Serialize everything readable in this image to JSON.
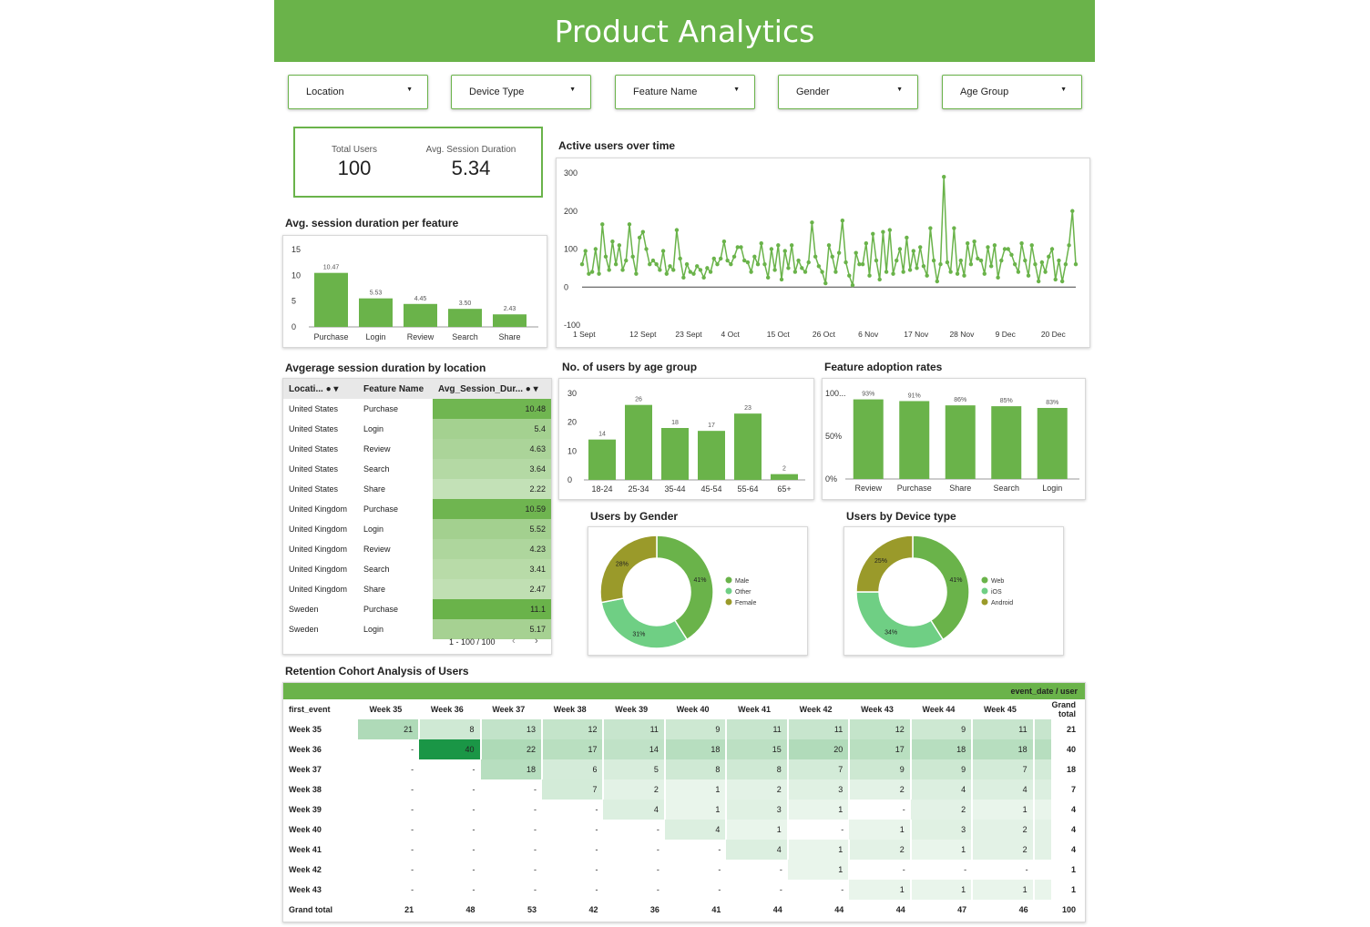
{
  "header": {
    "title": "Product Analytics"
  },
  "filters": [
    "Location",
    "Device Type",
    "Feature Name",
    "Gender",
    "Age Group"
  ],
  "kpis": {
    "total_users_label": "Total Users",
    "total_users": "100",
    "avg_session_label": "Avg. Session Duration",
    "avg_session": "5.34"
  },
  "colors": {
    "accent": "#6ab34a",
    "olive": "#9a9a2a",
    "light_green": "#6fcf84"
  },
  "titles": {
    "session_per_feature": "Avg. session duration per feature",
    "active_users": "Active users over time",
    "session_by_location": "Avgerage session duration by location",
    "users_by_age": "No. of users by age group",
    "feature_adoption": "Feature adoption rates",
    "users_by_gender": "Users by Gender",
    "users_by_device": "Users by Device type",
    "retention": "Retention Cohort Analysis of Users"
  },
  "chart_data": [
    {
      "id": "session_per_feature",
      "type": "bar",
      "categories": [
        "Purchase",
        "Login",
        "Review",
        "Search",
        "Share"
      ],
      "values": [
        10.47,
        5.53,
        4.45,
        3.5,
        2.43
      ],
      "value_labels": [
        "10.47",
        "5.53",
        "4.45",
        "3.50",
        "2.43"
      ],
      "yticks": [
        "15",
        "10",
        "5",
        "0"
      ],
      "ylim": [
        0,
        15
      ]
    },
    {
      "id": "active_users",
      "type": "line",
      "xticks": [
        "1 Sept",
        "12 Sept",
        "23 Sept",
        "4 Oct",
        "15 Oct",
        "26 Oct",
        "6 Nov",
        "17 Nov",
        "28 Nov",
        "9 Dec",
        "20 Dec"
      ],
      "yticks": [
        "300",
        "200",
        "100",
        "0",
        "-100"
      ],
      "ylim": [
        -100,
        300
      ],
      "values": [
        60,
        95,
        35,
        40,
        100,
        35,
        165,
        80,
        45,
        120,
        60,
        110,
        45,
        70,
        165,
        80,
        35,
        130,
        145,
        100,
        60,
        70,
        60,
        45,
        95,
        35,
        55,
        45,
        150,
        75,
        25,
        60,
        40,
        35,
        55,
        45,
        25,
        50,
        40,
        75,
        60,
        75,
        120,
        70,
        60,
        80,
        105,
        105,
        70,
        65,
        40,
        80,
        60,
        115,
        60,
        25,
        100,
        45,
        110,
        20,
        95,
        50,
        110,
        40,
        70,
        50,
        40,
        65,
        170,
        80,
        55,
        40,
        10,
        110,
        80,
        40,
        90,
        175,
        65,
        30,
        5,
        90,
        60,
        60,
        115,
        30,
        140,
        70,
        20,
        145,
        40,
        150,
        35,
        70,
        100,
        40,
        130,
        45,
        95,
        50,
        105,
        55,
        30,
        155,
        70,
        15,
        60,
        290,
        65,
        40,
        155,
        35,
        70,
        30,
        115,
        60,
        120,
        75,
        70,
        35,
        105,
        55,
        110,
        25,
        70,
        100,
        100,
        85,
        60,
        40,
        115,
        70,
        30,
        110,
        60,
        15,
        65,
        40,
        80,
        100,
        20,
        70,
        15,
        60,
        110,
        200,
        60
      ]
    },
    {
      "id": "users_by_age",
      "type": "bar",
      "categories": [
        "18-24",
        "25-34",
        "35-44",
        "45-54",
        "55-64",
        "65+"
      ],
      "values": [
        14,
        26,
        18,
        17,
        23,
        2
      ],
      "yticks": [
        "30",
        "20",
        "10",
        "0"
      ],
      "ylim": [
        0,
        30
      ]
    },
    {
      "id": "feature_adoption",
      "type": "bar",
      "categories": [
        "Review",
        "Purchase",
        "Share",
        "Search",
        "Login"
      ],
      "values": [
        93,
        91,
        86,
        85,
        83
      ],
      "value_labels": [
        "93%",
        "91%",
        "86%",
        "85%",
        "83%"
      ],
      "yticks": [
        "100...",
        "50%",
        "0%"
      ],
      "ylim": [
        0,
        100
      ]
    },
    {
      "id": "users_by_gender",
      "type": "pie",
      "labels": [
        "Male",
        "Other",
        "Female"
      ],
      "values": [
        41,
        31,
        28
      ],
      "value_labels": [
        "41%",
        "31%",
        "28%"
      ]
    },
    {
      "id": "users_by_device",
      "type": "pie",
      "labels": [
        "Web",
        "iOS",
        "Android"
      ],
      "values": [
        41,
        34,
        25
      ],
      "value_labels": [
        "41%",
        "34%",
        "25%"
      ]
    }
  ],
  "location_table": {
    "headers": [
      "Locati...",
      "Feature Name",
      "Avg_Session_Dur..."
    ],
    "rows": [
      [
        "United States",
        "Purchase",
        10.48
      ],
      [
        "United States",
        "Login",
        5.4
      ],
      [
        "United States",
        "Review",
        4.63
      ],
      [
        "United States",
        "Search",
        3.64
      ],
      [
        "United States",
        "Share",
        2.22
      ],
      [
        "United Kingdom",
        "Purchase",
        10.59
      ],
      [
        "United Kingdom",
        "Login",
        5.52
      ],
      [
        "United Kingdom",
        "Review",
        4.23
      ],
      [
        "United Kingdom",
        "Search",
        3.41
      ],
      [
        "United Kingdom",
        "Share",
        2.47
      ],
      [
        "Sweden",
        "Purchase",
        11.1
      ],
      [
        "Sweden",
        "Login",
        5.17
      ]
    ],
    "pagination": "1 - 100 / 100"
  },
  "cohort": {
    "banner": "event_date / user",
    "row_header": "first_event",
    "columns": [
      "Week 35",
      "Week 36",
      "Week 37",
      "Week 38",
      "Week 39",
      "Week 40",
      "Week 41",
      "Week 42",
      "Week 43",
      "Week 44",
      "Week 45"
    ],
    "total_label": "Grand total",
    "rows": [
      {
        "label": "Week 35",
        "cells": [
          "21",
          "8",
          "13",
          "12",
          "11",
          "9",
          "11",
          "11",
          "12",
          "9",
          "11"
        ],
        "total": "21"
      },
      {
        "label": "Week 36",
        "cells": [
          "-",
          "40",
          "22",
          "17",
          "14",
          "18",
          "15",
          "20",
          "17",
          "18",
          "18"
        ],
        "total": "40"
      },
      {
        "label": "Week 37",
        "cells": [
          "-",
          "-",
          "18",
          "6",
          "5",
          "8",
          "8",
          "7",
          "9",
          "9",
          "7"
        ],
        "total": "18"
      },
      {
        "label": "Week 38",
        "cells": [
          "-",
          "-",
          "-",
          "7",
          "2",
          "1",
          "2",
          "3",
          "2",
          "4",
          "4"
        ],
        "total": "7"
      },
      {
        "label": "Week 39",
        "cells": [
          "-",
          "-",
          "-",
          "-",
          "4",
          "1",
          "3",
          "1",
          "-",
          "2",
          "1"
        ],
        "total": "4"
      },
      {
        "label": "Week 40",
        "cells": [
          "-",
          "-",
          "-",
          "-",
          "-",
          "4",
          "1",
          "-",
          "1",
          "3",
          "2"
        ],
        "total": "4"
      },
      {
        "label": "Week 41",
        "cells": [
          "-",
          "-",
          "-",
          "-",
          "-",
          "-",
          "4",
          "1",
          "2",
          "1",
          "2"
        ],
        "total": "4"
      },
      {
        "label": "Week 42",
        "cells": [
          "-",
          "-",
          "-",
          "-",
          "-",
          "-",
          "-",
          "1",
          "-",
          "-",
          "-"
        ],
        "total": "1"
      },
      {
        "label": "Week 43",
        "cells": [
          "-",
          "-",
          "-",
          "-",
          "-",
          "-",
          "-",
          "-",
          "1",
          "1",
          "1"
        ],
        "total": "1"
      }
    ],
    "grand_total_row": {
      "label": "Grand total",
      "cells": [
        "21",
        "48",
        "53",
        "42",
        "36",
        "41",
        "44",
        "44",
        "44",
        "47",
        "46"
      ],
      "total": "100"
    }
  }
}
